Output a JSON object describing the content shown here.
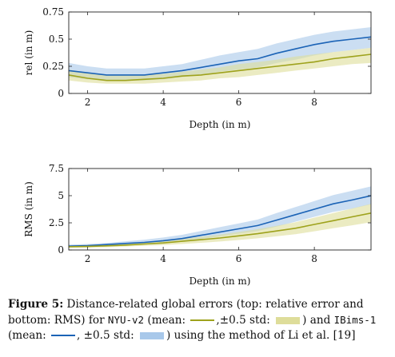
{
  "colors": {
    "nyu_line": "#9ea21c",
    "nyu_band": "#dedd9a",
    "ibims_line": "#1b63b6",
    "ibims_band": "#a8c8ea"
  },
  "chart_data": [
    {
      "type": "line",
      "xlabel": "Depth (in m)",
      "ylabel": "rel (in m)",
      "xlim": [
        1.5,
        9.5
      ],
      "ylim": [
        0,
        0.75
      ],
      "xticks": [
        "2",
        "4",
        "6",
        "8"
      ],
      "yticks": [
        "0",
        "0.25",
        "0.5",
        "0.75"
      ],
      "x": [
        1.5,
        2.0,
        2.5,
        3.0,
        3.5,
        4.0,
        4.5,
        5.0,
        5.5,
        6.0,
        6.5,
        7.0,
        7.5,
        8.0,
        8.5,
        9.0,
        9.5
      ],
      "series": [
        {
          "key": "ibims",
          "mean": [
            0.21,
            0.19,
            0.17,
            0.17,
            0.17,
            0.19,
            0.21,
            0.24,
            0.27,
            0.3,
            0.32,
            0.37,
            0.41,
            0.45,
            0.48,
            0.5,
            0.52
          ],
          "lower": [
            0.15,
            0.13,
            0.12,
            0.12,
            0.12,
            0.13,
            0.15,
            0.17,
            0.2,
            0.22,
            0.24,
            0.28,
            0.31,
            0.35,
            0.38,
            0.4,
            0.42
          ],
          "upper": [
            0.28,
            0.25,
            0.23,
            0.23,
            0.23,
            0.25,
            0.27,
            0.31,
            0.35,
            0.38,
            0.41,
            0.46,
            0.5,
            0.54,
            0.57,
            0.59,
            0.61
          ]
        },
        {
          "key": "nyu",
          "mean": [
            0.17,
            0.14,
            0.12,
            0.12,
            0.13,
            0.14,
            0.16,
            0.17,
            0.19,
            0.21,
            0.23,
            0.25,
            0.27,
            0.29,
            0.32,
            0.34,
            0.36
          ],
          "lower": [
            0.12,
            0.1,
            0.09,
            0.09,
            0.09,
            0.1,
            0.11,
            0.12,
            0.14,
            0.15,
            0.17,
            0.19,
            0.21,
            0.23,
            0.25,
            0.27,
            0.28
          ],
          "upper": [
            0.22,
            0.19,
            0.17,
            0.17,
            0.17,
            0.18,
            0.2,
            0.22,
            0.24,
            0.27,
            0.29,
            0.31,
            0.34,
            0.36,
            0.38,
            0.4,
            0.42
          ]
        }
      ]
    },
    {
      "type": "line",
      "xlabel": "Depth (in m)",
      "ylabel": "RMS (in m)",
      "xlim": [
        1.5,
        9.5
      ],
      "ylim": [
        0,
        7.5
      ],
      "xticks": [
        "2",
        "4",
        "6",
        "8"
      ],
      "yticks": [
        "0",
        "2.5",
        "5",
        "7.5"
      ],
      "x": [
        1.5,
        2.0,
        2.5,
        3.0,
        3.5,
        4.0,
        4.5,
        5.0,
        5.5,
        6.0,
        6.5,
        7.0,
        7.5,
        8.0,
        8.5,
        9.0,
        9.5
      ],
      "series": [
        {
          "key": "ibims",
          "mean": [
            0.35,
            0.4,
            0.5,
            0.6,
            0.7,
            0.85,
            1.05,
            1.35,
            1.65,
            1.95,
            2.25,
            2.75,
            3.25,
            3.75,
            4.25,
            4.6,
            5.0
          ],
          "lower": [
            0.25,
            0.28,
            0.35,
            0.42,
            0.5,
            0.6,
            0.75,
            1.0,
            1.25,
            1.5,
            1.75,
            2.15,
            2.6,
            3.05,
            3.5,
            3.8,
            4.2
          ],
          "upper": [
            0.5,
            0.55,
            0.65,
            0.8,
            0.95,
            1.15,
            1.4,
            1.75,
            2.1,
            2.45,
            2.8,
            3.4,
            3.95,
            4.5,
            5.05,
            5.45,
            5.85
          ]
        },
        {
          "key": "nyu",
          "mean": [
            0.3,
            0.32,
            0.38,
            0.45,
            0.55,
            0.65,
            0.8,
            0.95,
            1.1,
            1.3,
            1.5,
            1.75,
            2.0,
            2.35,
            2.7,
            3.05,
            3.4
          ],
          "lower": [
            0.2,
            0.22,
            0.26,
            0.32,
            0.38,
            0.45,
            0.55,
            0.66,
            0.78,
            0.92,
            1.07,
            1.26,
            1.45,
            1.72,
            2.0,
            2.27,
            2.55
          ],
          "upper": [
            0.4,
            0.43,
            0.5,
            0.58,
            0.7,
            0.84,
            1.02,
            1.22,
            1.42,
            1.66,
            1.92,
            2.22,
            2.55,
            2.98,
            3.4,
            3.82,
            4.25
          ]
        }
      ]
    }
  ],
  "caption": {
    "label": "Figure 5:",
    "part1": " Distance-related global errors (top: relative error and bottom: RMS) for ",
    "nyu_name": "NYU-v2",
    "mean_open": " (mean: ",
    "std_sep": ",±0.5 std: ",
    "and_text": ") and ",
    "ibims_name": "IBims-1",
    "mean_open2": " (mean: ",
    "std_sep2": ", ±0.5 std: ",
    "end_text": ") using the method of Li et al. [19]"
  }
}
